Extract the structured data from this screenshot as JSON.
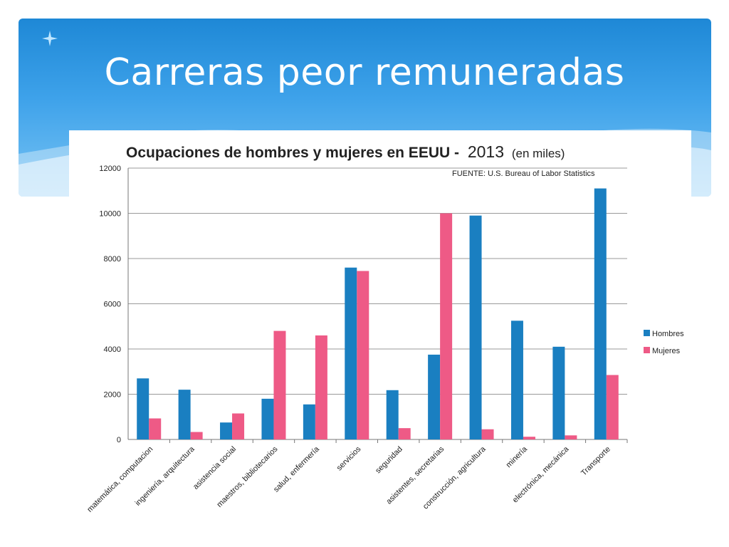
{
  "slide": {
    "title": "Carreras peor remuneradas"
  },
  "chart_data": {
    "type": "bar",
    "title_bold": "Ocupaciones de hombres y mujeres en EEUU -",
    "title_year": "2013",
    "title_unit": "(en miles)",
    "source": "FUENTE: U.S. Bureau of Labor Statistics",
    "categories": [
      "matemática, computacion",
      "ingeniería, arquitectura",
      "asistencia social",
      "maestros, bibliotecarios",
      "salud, enfermería",
      "servicios",
      "seguridad",
      "asistentes, secretarias",
      "construcción, agricultura",
      "minería",
      "electrónica, mecánica",
      "Transporte"
    ],
    "series": [
      {
        "name": "Hombres",
        "color": "#1a7fc1",
        "values": [
          2700,
          2200,
          750,
          1800,
          1550,
          7600,
          2180,
          3750,
          9900,
          5250,
          4100,
          11100
        ]
      },
      {
        "name": "Mujeres",
        "color": "#ee5a86",
        "values": [
          930,
          330,
          1150,
          4800,
          4600,
          7450,
          500,
          10000,
          450,
          120,
          180,
          2850
        ]
      }
    ],
    "yticks": [
      "12000",
      "10000",
      "8000",
      "6000",
      "4000",
      "2000",
      "0"
    ],
    "ylim": [
      0,
      12000
    ],
    "grid": true,
    "legend_position": "right"
  }
}
